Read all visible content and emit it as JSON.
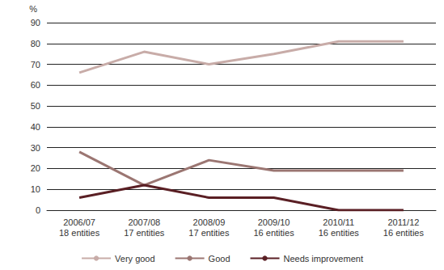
{
  "chart_data": {
    "type": "line",
    "y_label": "%",
    "categories": [
      "2006/07\n18 entities",
      "2007/08\n17 entities",
      "2008/09\n17 entities",
      "2009/10\n16 entities",
      "2010/11\n16 entities",
      "2011/12\n16 entities"
    ],
    "series": [
      {
        "name": "Very good",
        "color": "#c8aca8",
        "values": [
          66,
          76,
          70,
          75,
          81,
          81
        ]
      },
      {
        "name": "Good",
        "color": "#9b7672",
        "values": [
          28,
          12,
          24,
          19,
          19,
          19
        ]
      },
      {
        "name": "Needs improvement",
        "color": "#5a1f24",
        "values": [
          6,
          12,
          6,
          6,
          0,
          0
        ]
      }
    ],
    "ylim": [
      0,
      90
    ],
    "yticks": [
      0,
      10,
      20,
      30,
      40,
      50,
      60,
      70,
      80,
      90
    ],
    "grid": true,
    "legend": "bottom"
  }
}
